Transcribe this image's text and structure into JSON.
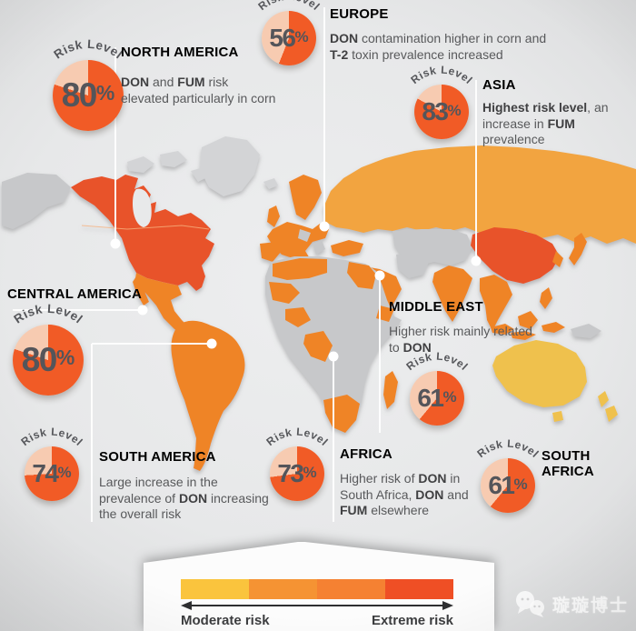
{
  "pie": {
    "label": "Risk Level",
    "unit": "%"
  },
  "regions": [
    {
      "name": "NORTH AMERICA",
      "value": 80,
      "desc": [
        [
          "DON",
          1
        ],
        [
          " and ",
          0
        ],
        [
          "FUM",
          1
        ],
        [
          " risk elevated particularly in corn",
          0
        ]
      ]
    },
    {
      "name": "EUROPE",
      "value": 56,
      "desc": [
        [
          "DON",
          1
        ],
        [
          " contamination higher in corn and ",
          0
        ],
        [
          "T-2",
          1
        ],
        [
          " toxin prevalence increased",
          0
        ]
      ]
    },
    {
      "name": "ASIA",
      "value": 83,
      "desc": [
        [
          "Highest risk level",
          1
        ],
        [
          ", an increase in ",
          0
        ],
        [
          "FUM",
          1
        ],
        [
          " prevalence",
          0
        ]
      ]
    },
    {
      "name": "CENTRAL AMERICA",
      "value": 80,
      "desc": []
    },
    {
      "name": "MIDDLE EAST",
      "value": 61,
      "desc": [
        [
          "Higher risk mainly related to ",
          0
        ],
        [
          "DON",
          1
        ]
      ]
    },
    {
      "name": "SOUTH AMERICA",
      "value": 74,
      "desc": [
        [
          "Large increase in the prevalence of ",
          0
        ],
        [
          "DON",
          1
        ],
        [
          " increasing the overall risk",
          0
        ]
      ]
    },
    {
      "name": "AFRICA",
      "value": 73,
      "desc": [
        [
          "Higher risk of ",
          0
        ],
        [
          "DON",
          1
        ],
        [
          " in South Africa, ",
          0
        ],
        [
          "DON",
          1
        ],
        [
          " and ",
          0
        ],
        [
          "FUM",
          1
        ],
        [
          " elsewhere",
          0
        ]
      ]
    },
    {
      "name": "SOUTH AFRICA",
      "value": 61,
      "desc": []
    }
  ],
  "legend": {
    "moderate": "Moderate risk",
    "extreme": "Extreme risk"
  },
  "watermark": {
    "text": "璇璇博士"
  },
  "colors": {
    "heading_green": "#1FA04C",
    "pie_fill": "#F15B26",
    "pie_rest": "#F7CBB1",
    "pie_text": "#54555A",
    "map_extreme": "#E8532A",
    "map_high": "#EF8428",
    "map_medium": "#F2A440",
    "map_moderate": "#EFC14E",
    "map_nodata": "#C7C8CA",
    "map_nodata_light": "#D3D4D6",
    "ocean": "#E8E9EA",
    "legend_blocks": [
      "#FAC43D",
      "#F59333",
      "#F58132",
      "#EF4F25"
    ]
  },
  "chart_data": {
    "type": "pie",
    "title": "Risk Level",
    "unit": "%",
    "categories": [
      "North America",
      "Europe",
      "Asia",
      "Central America",
      "Middle East",
      "South America",
      "Africa",
      "South Africa"
    ],
    "values": [
      80,
      56,
      83,
      80,
      61,
      74,
      73,
      61
    ],
    "notes": [
      "DON and FUM risk elevated particularly in corn",
      "DON contamination higher in corn and T-2 toxin prevalence increased",
      "Highest risk level, an increase in FUM prevalence",
      "",
      "Higher risk mainly related to DON",
      "Large increase in the prevalence of DON increasing the overall risk",
      "Higher risk of DON in South Africa, DON and FUM elsewhere",
      ""
    ],
    "scale": {
      "left_label": "Moderate risk",
      "right_label": "Extreme risk",
      "colors": [
        "#FAC43D",
        "#F59333",
        "#F58132",
        "#EF4F25"
      ]
    },
    "legend_position": "bottom"
  }
}
